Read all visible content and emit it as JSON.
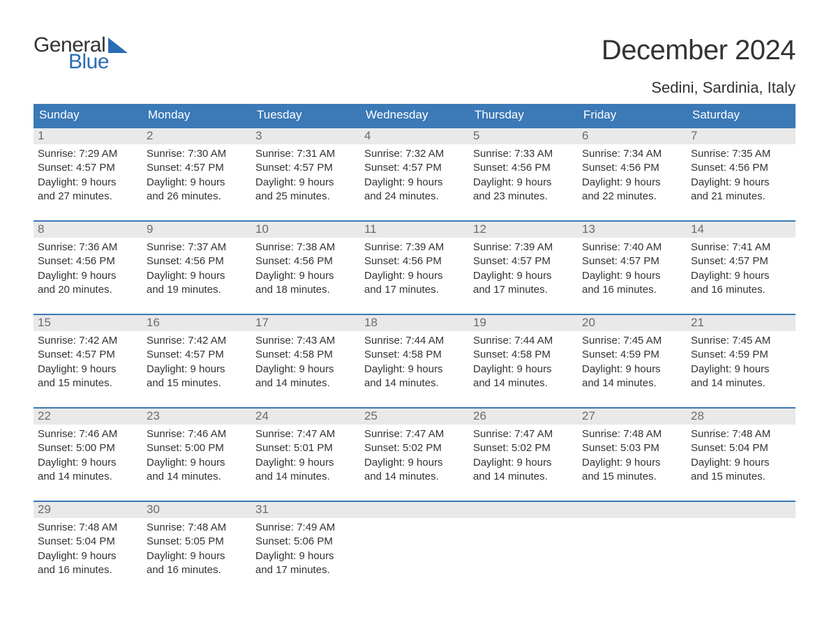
{
  "logo": {
    "text_general": "General",
    "text_blue": "Blue",
    "brand_color": "#2a6db5"
  },
  "header": {
    "month_title": "December 2024",
    "location": "Sedini, Sardinia, Italy"
  },
  "colors": {
    "header_bar": "#3b79b7",
    "header_text": "#ffffff",
    "daynum_bg": "#e9e9e9",
    "daynum_fg": "#6b6b6b",
    "body_text": "#333333",
    "rule": "#3b79b7",
    "page_bg": "#ffffff"
  },
  "typography": {
    "month_title_fontsize": 40,
    "location_fontsize": 22,
    "weekday_fontsize": 17,
    "daynum_fontsize": 17,
    "body_fontsize": 15,
    "font_family": "Arial"
  },
  "weekdays": [
    "Sunday",
    "Monday",
    "Tuesday",
    "Wednesday",
    "Thursday",
    "Friday",
    "Saturday"
  ],
  "weeks": [
    [
      {
        "num": "1",
        "sunrise": "Sunrise: 7:29 AM",
        "sunset": "Sunset: 4:57 PM",
        "dl1": "Daylight: 9 hours",
        "dl2": "and 27 minutes."
      },
      {
        "num": "2",
        "sunrise": "Sunrise: 7:30 AM",
        "sunset": "Sunset: 4:57 PM",
        "dl1": "Daylight: 9 hours",
        "dl2": "and 26 minutes."
      },
      {
        "num": "3",
        "sunrise": "Sunrise: 7:31 AM",
        "sunset": "Sunset: 4:57 PM",
        "dl1": "Daylight: 9 hours",
        "dl2": "and 25 minutes."
      },
      {
        "num": "4",
        "sunrise": "Sunrise: 7:32 AM",
        "sunset": "Sunset: 4:57 PM",
        "dl1": "Daylight: 9 hours",
        "dl2": "and 24 minutes."
      },
      {
        "num": "5",
        "sunrise": "Sunrise: 7:33 AM",
        "sunset": "Sunset: 4:56 PM",
        "dl1": "Daylight: 9 hours",
        "dl2": "and 23 minutes."
      },
      {
        "num": "6",
        "sunrise": "Sunrise: 7:34 AM",
        "sunset": "Sunset: 4:56 PM",
        "dl1": "Daylight: 9 hours",
        "dl2": "and 22 minutes."
      },
      {
        "num": "7",
        "sunrise": "Sunrise: 7:35 AM",
        "sunset": "Sunset: 4:56 PM",
        "dl1": "Daylight: 9 hours",
        "dl2": "and 21 minutes."
      }
    ],
    [
      {
        "num": "8",
        "sunrise": "Sunrise: 7:36 AM",
        "sunset": "Sunset: 4:56 PM",
        "dl1": "Daylight: 9 hours",
        "dl2": "and 20 minutes."
      },
      {
        "num": "9",
        "sunrise": "Sunrise: 7:37 AM",
        "sunset": "Sunset: 4:56 PM",
        "dl1": "Daylight: 9 hours",
        "dl2": "and 19 minutes."
      },
      {
        "num": "10",
        "sunrise": "Sunrise: 7:38 AM",
        "sunset": "Sunset: 4:56 PM",
        "dl1": "Daylight: 9 hours",
        "dl2": "and 18 minutes."
      },
      {
        "num": "11",
        "sunrise": "Sunrise: 7:39 AM",
        "sunset": "Sunset: 4:56 PM",
        "dl1": "Daylight: 9 hours",
        "dl2": "and 17 minutes."
      },
      {
        "num": "12",
        "sunrise": "Sunrise: 7:39 AM",
        "sunset": "Sunset: 4:57 PM",
        "dl1": "Daylight: 9 hours",
        "dl2": "and 17 minutes."
      },
      {
        "num": "13",
        "sunrise": "Sunrise: 7:40 AM",
        "sunset": "Sunset: 4:57 PM",
        "dl1": "Daylight: 9 hours",
        "dl2": "and 16 minutes."
      },
      {
        "num": "14",
        "sunrise": "Sunrise: 7:41 AM",
        "sunset": "Sunset: 4:57 PM",
        "dl1": "Daylight: 9 hours",
        "dl2": "and 16 minutes."
      }
    ],
    [
      {
        "num": "15",
        "sunrise": "Sunrise: 7:42 AM",
        "sunset": "Sunset: 4:57 PM",
        "dl1": "Daylight: 9 hours",
        "dl2": "and 15 minutes."
      },
      {
        "num": "16",
        "sunrise": "Sunrise: 7:42 AM",
        "sunset": "Sunset: 4:57 PM",
        "dl1": "Daylight: 9 hours",
        "dl2": "and 15 minutes."
      },
      {
        "num": "17",
        "sunrise": "Sunrise: 7:43 AM",
        "sunset": "Sunset: 4:58 PM",
        "dl1": "Daylight: 9 hours",
        "dl2": "and 14 minutes."
      },
      {
        "num": "18",
        "sunrise": "Sunrise: 7:44 AM",
        "sunset": "Sunset: 4:58 PM",
        "dl1": "Daylight: 9 hours",
        "dl2": "and 14 minutes."
      },
      {
        "num": "19",
        "sunrise": "Sunrise: 7:44 AM",
        "sunset": "Sunset: 4:58 PM",
        "dl1": "Daylight: 9 hours",
        "dl2": "and 14 minutes."
      },
      {
        "num": "20",
        "sunrise": "Sunrise: 7:45 AM",
        "sunset": "Sunset: 4:59 PM",
        "dl1": "Daylight: 9 hours",
        "dl2": "and 14 minutes."
      },
      {
        "num": "21",
        "sunrise": "Sunrise: 7:45 AM",
        "sunset": "Sunset: 4:59 PM",
        "dl1": "Daylight: 9 hours",
        "dl2": "and 14 minutes."
      }
    ],
    [
      {
        "num": "22",
        "sunrise": "Sunrise: 7:46 AM",
        "sunset": "Sunset: 5:00 PM",
        "dl1": "Daylight: 9 hours",
        "dl2": "and 14 minutes."
      },
      {
        "num": "23",
        "sunrise": "Sunrise: 7:46 AM",
        "sunset": "Sunset: 5:00 PM",
        "dl1": "Daylight: 9 hours",
        "dl2": "and 14 minutes."
      },
      {
        "num": "24",
        "sunrise": "Sunrise: 7:47 AM",
        "sunset": "Sunset: 5:01 PM",
        "dl1": "Daylight: 9 hours",
        "dl2": "and 14 minutes."
      },
      {
        "num": "25",
        "sunrise": "Sunrise: 7:47 AM",
        "sunset": "Sunset: 5:02 PM",
        "dl1": "Daylight: 9 hours",
        "dl2": "and 14 minutes."
      },
      {
        "num": "26",
        "sunrise": "Sunrise: 7:47 AM",
        "sunset": "Sunset: 5:02 PM",
        "dl1": "Daylight: 9 hours",
        "dl2": "and 14 minutes."
      },
      {
        "num": "27",
        "sunrise": "Sunrise: 7:48 AM",
        "sunset": "Sunset: 5:03 PM",
        "dl1": "Daylight: 9 hours",
        "dl2": "and 15 minutes."
      },
      {
        "num": "28",
        "sunrise": "Sunrise: 7:48 AM",
        "sunset": "Sunset: 5:04 PM",
        "dl1": "Daylight: 9 hours",
        "dl2": "and 15 minutes."
      }
    ],
    [
      {
        "num": "29",
        "sunrise": "Sunrise: 7:48 AM",
        "sunset": "Sunset: 5:04 PM",
        "dl1": "Daylight: 9 hours",
        "dl2": "and 16 minutes."
      },
      {
        "num": "30",
        "sunrise": "Sunrise: 7:48 AM",
        "sunset": "Sunset: 5:05 PM",
        "dl1": "Daylight: 9 hours",
        "dl2": "and 16 minutes."
      },
      {
        "num": "31",
        "sunrise": "Sunrise: 7:49 AM",
        "sunset": "Sunset: 5:06 PM",
        "dl1": "Daylight: 9 hours",
        "dl2": "and 17 minutes."
      },
      {
        "empty": true
      },
      {
        "empty": true
      },
      {
        "empty": true
      },
      {
        "empty": true
      }
    ]
  ]
}
